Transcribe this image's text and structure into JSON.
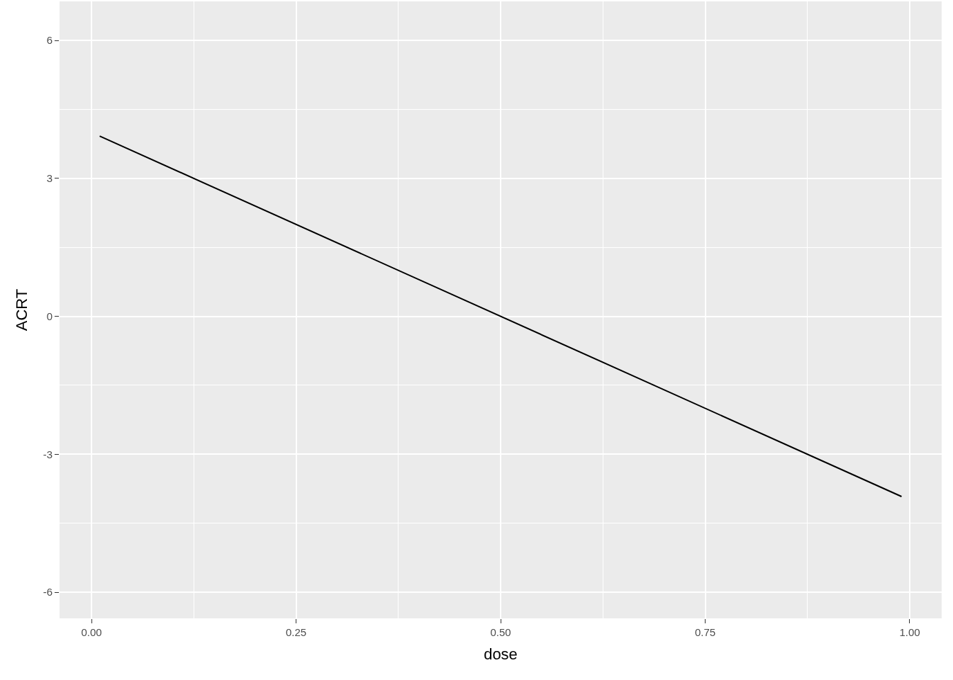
{
  "chart_data": {
    "type": "line",
    "xlabel": "dose",
    "ylabel": "ACRT",
    "x": [
      0.01,
      0.99
    ],
    "series": [
      {
        "color": "#000000",
        "values": [
          3.92,
          -3.92
        ]
      }
    ],
    "xlim": [
      -0.039,
      1.039
    ],
    "ylim": [
      -6.57,
      6.85
    ],
    "xticks": [
      {
        "value": 0,
        "label": "0.00"
      },
      0.25,
      {
        "value": 0.5,
        "label": "0.50"
      },
      0.75,
      {
        "value": 1,
        "label": "1.00"
      }
    ],
    "yticks": [
      -6,
      -3,
      0,
      3,
      6
    ],
    "grid": true,
    "marker": "none",
    "line_style": "solid"
  }
}
